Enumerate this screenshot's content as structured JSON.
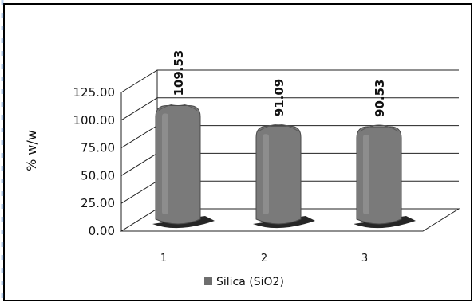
{
  "chart_data": {
    "type": "bar",
    "categories": [
      "1",
      "2",
      "3"
    ],
    "series": [
      {
        "name": "Silica (SiO2)",
        "values": [
          109.53,
          91.09,
          90.53
        ],
        "color": "#7a7a7a"
      }
    ],
    "data_labels": [
      "109.53",
      "91.09",
      "90.53"
    ],
    "title": "",
    "xlabel": "",
    "ylabel": "% w/w",
    "ylim": [
      0,
      125
    ],
    "yticks": [
      "0.00",
      "25.00",
      "50.00",
      "75.00",
      "100.00",
      "125.00"
    ],
    "grid": true,
    "legend_position": "bottom",
    "style": "3d-cylinder"
  }
}
